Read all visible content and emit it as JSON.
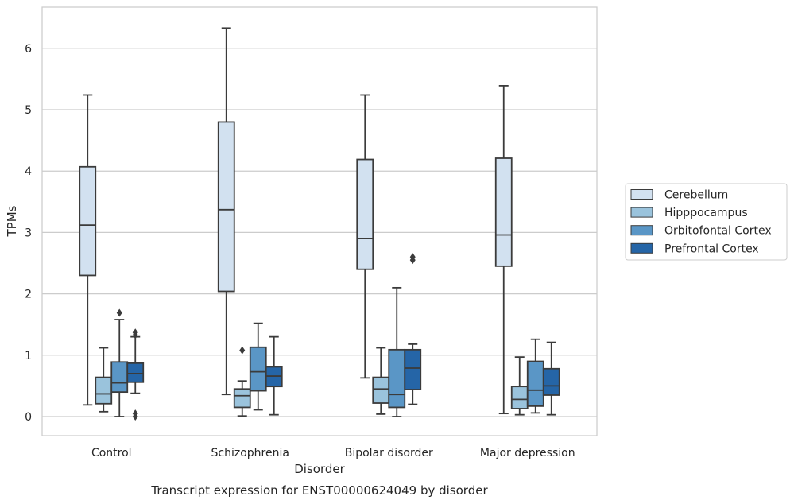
{
  "chart_data": {
    "type": "box",
    "xlabel": "Disorder",
    "ylabel": "TPMs",
    "caption": "Transcript expression for ENST00000624049 by disorder",
    "categories": [
      "Control",
      "Schizophrenia",
      "Bipolar disorder",
      "Major depression"
    ],
    "yticks": [
      "0",
      "1",
      "2",
      "3",
      "4",
      "5",
      "6"
    ],
    "ylim": [
      -0.3,
      6.65
    ],
    "grid": "horizontal",
    "legend_position": "right",
    "series": [
      {
        "name": "Cerebellum",
        "color": "#d2e1f0",
        "boxes": [
          {
            "whislo": 0.19,
            "q1": 2.3,
            "med": 3.12,
            "q3": 4.07,
            "whishi": 5.24,
            "fliers": []
          },
          {
            "whislo": 0.36,
            "q1": 2.04,
            "med": 3.37,
            "q3": 4.8,
            "whishi": 6.33,
            "fliers": []
          },
          {
            "whislo": 0.63,
            "q1": 2.4,
            "med": 2.9,
            "q3": 4.19,
            "whishi": 5.24,
            "fliers": []
          },
          {
            "whislo": 0.05,
            "q1": 2.45,
            "med": 2.96,
            "q3": 4.21,
            "whishi": 5.39,
            "fliers": []
          }
        ]
      },
      {
        "name": "Hipppocampus",
        "color": "#9ac3dc",
        "boxes": [
          {
            "whislo": 0.08,
            "q1": 0.21,
            "med": 0.37,
            "q3": 0.64,
            "whishi": 1.12,
            "fliers": []
          },
          {
            "whislo": 0.01,
            "q1": 0.15,
            "med": 0.34,
            "q3": 0.45,
            "whishi": 0.58,
            "fliers": [
              1.08
            ]
          },
          {
            "whislo": 0.04,
            "q1": 0.22,
            "med": 0.45,
            "q3": 0.64,
            "whishi": 1.12,
            "fliers": []
          },
          {
            "whislo": 0.03,
            "q1": 0.13,
            "med": 0.28,
            "q3": 0.49,
            "whishi": 0.97,
            "fliers": []
          }
        ]
      },
      {
        "name": "Orbitofontal Cortex",
        "color": "#5a96c6",
        "boxes": [
          {
            "whislo": 0.0,
            "q1": 0.4,
            "med": 0.55,
            "q3": 0.89,
            "whishi": 1.58,
            "fliers": [
              1.69
            ]
          },
          {
            "whislo": 0.11,
            "q1": 0.42,
            "med": 0.73,
            "q3": 1.13,
            "whishi": 1.52,
            "fliers": []
          },
          {
            "whislo": 0.0,
            "q1": 0.15,
            "med": 0.36,
            "q3": 1.09,
            "whishi": 2.1,
            "fliers": []
          },
          {
            "whislo": 0.06,
            "q1": 0.17,
            "med": 0.43,
            "q3": 0.9,
            "whishi": 1.26,
            "fliers": []
          }
        ]
      },
      {
        "name": "Prefrontal Cortex",
        "color": "#2565a7",
        "boxes": [
          {
            "whislo": 0.38,
            "q1": 0.56,
            "med": 0.7,
            "q3": 0.87,
            "whishi": 1.3,
            "fliers": [
              1.37,
              1.33,
              0.05,
              0.0
            ]
          },
          {
            "whislo": 0.03,
            "q1": 0.49,
            "med": 0.66,
            "q3": 0.81,
            "whishi": 1.3,
            "fliers": []
          },
          {
            "whislo": 0.2,
            "q1": 0.44,
            "med": 0.79,
            "q3": 1.09,
            "whishi": 1.18,
            "fliers": [
              2.6,
              2.55
            ]
          },
          {
            "whislo": 0.03,
            "q1": 0.35,
            "med": 0.5,
            "q3": 0.78,
            "whishi": 1.21,
            "fliers": []
          }
        ]
      }
    ]
  }
}
